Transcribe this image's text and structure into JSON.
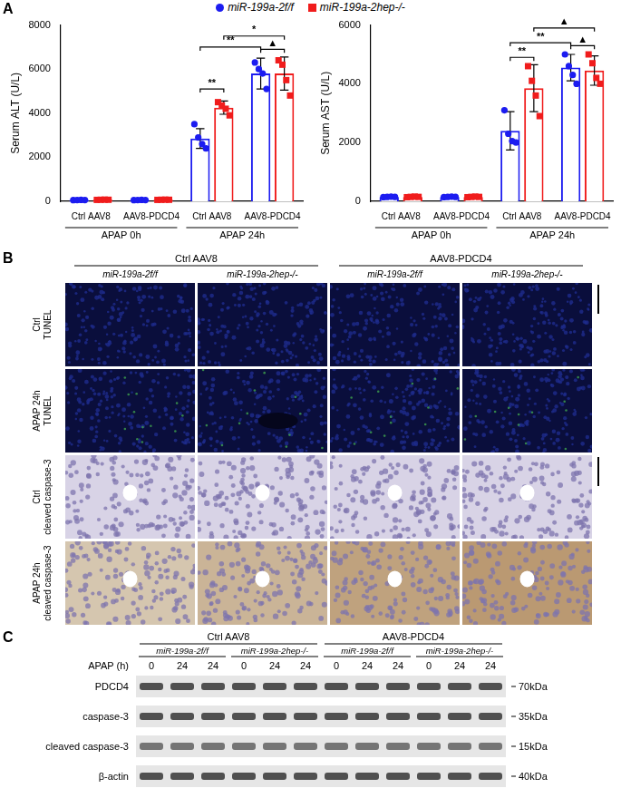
{
  "panel_labels": [
    "A",
    "B",
    "C"
  ],
  "chart_data": [
    {
      "type": "bar",
      "y_label": "Serum ALT (U/L)",
      "categories": [
        "Ctrl AAV8",
        "AAV8-PDCD4",
        "Ctrl AAV8",
        "AAV8-PDCD4"
      ],
      "groups": [
        "APAP 0h",
        "APAP 0h",
        "APAP 24h",
        "APAP 24h"
      ],
      "ylim": [
        0,
        8000
      ],
      "yticks": [
        0,
        2000,
        4000,
        6000,
        8000
      ],
      "grid": false,
      "legend": "top",
      "series": [
        {
          "name": "miR-199a-2f/f",
          "color": "#1c1cf0",
          "marker": "circle",
          "values": [
            60,
            60,
            2850,
            5800
          ],
          "errors": [
            10,
            10,
            450,
            700
          ],
          "points": [
            [
              55,
              60,
              65,
              60
            ],
            [
              55,
              60,
              65,
              60
            ],
            [
              3500,
              2900,
              2600,
              2400
            ],
            [
              6300,
              6000,
              5800,
              5100
            ]
          ]
        },
        {
          "name": "miR-199a-2hep-/-",
          "color": "#f01c1c",
          "marker": "square",
          "values": [
            70,
            70,
            4250,
            5800
          ],
          "errors": [
            10,
            10,
            300,
            750
          ],
          "points": [
            [
              65,
              70,
              75,
              70
            ],
            [
              65,
              70,
              75,
              70
            ],
            [
              4500,
              4350,
              4200,
              3900
            ],
            [
              6400,
              6200,
              5500,
              4800
            ]
          ]
        }
      ],
      "annotations": [
        {
          "text": "**",
          "y": 5100,
          "from": {
            "category": 2,
            "series": 0
          },
          "to": {
            "category": 2,
            "series": 1
          }
        },
        {
          "text": "**",
          "y": 7000,
          "from": {
            "category": 2,
            "series": 0
          },
          "to": {
            "category": 3,
            "series": 0
          }
        },
        {
          "text": "*",
          "y": 7500,
          "from": {
            "category": 2,
            "series": 1
          },
          "to": {
            "category": 3,
            "series": 1
          }
        },
        {
          "text": "▲",
          "y": 6900,
          "from": {
            "category": 3,
            "series": 0
          },
          "to": {
            "category": 3,
            "series": 1
          }
        }
      ]
    },
    {
      "type": "bar",
      "y_label": "Serum AST (U/L)",
      "categories": [
        "Ctrl AAV8",
        "AAV8-PDCD4",
        "Ctrl AAV8",
        "AAV8-PDCD4"
      ],
      "groups": [
        "APAP 0h",
        "APAP 0h",
        "APAP 24h",
        "APAP 24h"
      ],
      "ylim": [
        0,
        6000
      ],
      "yticks": [
        0,
        2000,
        4000,
        6000
      ],
      "grid": false,
      "series": [
        {
          "name": "miR-199a-2f/f",
          "color": "#1c1cf0",
          "marker": "circle",
          "values": [
            150,
            150,
            2400,
            4550
          ],
          "errors": [
            20,
            20,
            650,
            450
          ],
          "points": [
            [
              140,
              150,
              160,
              150
            ],
            [
              140,
              150,
              160,
              150
            ],
            [
              3100,
              2300,
              2050,
              2000
            ],
            [
              5000,
              4600,
              4300,
              4000
            ]
          ]
        },
        {
          "name": "miR-199a-2hep-/-",
          "color": "#f01c1c",
          "marker": "square",
          "values": [
            150,
            150,
            3850,
            4450
          ],
          "errors": [
            20,
            20,
            800,
            500
          ],
          "points": [
            [
              140,
              150,
              160,
              150
            ],
            [
              140,
              150,
              160,
              150
            ],
            [
              4600,
              4100,
              3600,
              2900
            ],
            [
              5000,
              4700,
              4200,
              4000
            ]
          ]
        }
      ],
      "annotations": [
        {
          "text": "**",
          "y": 4900,
          "from": {
            "category": 2,
            "series": 0
          },
          "to": {
            "category": 2,
            "series": 1
          }
        },
        {
          "text": "**",
          "y": 5400,
          "from": {
            "category": 2,
            "series": 0
          },
          "to": {
            "category": 3,
            "series": 0
          }
        },
        {
          "text": "▲",
          "y": 5900,
          "from": {
            "category": 2,
            "series": 1
          },
          "to": {
            "category": 3,
            "series": 1
          }
        },
        {
          "text": "▲",
          "y": 5300,
          "from": {
            "category": 3,
            "series": 0
          },
          "to": {
            "category": 3,
            "series": 1
          }
        }
      ]
    }
  ],
  "panel_b": {
    "column_groups": [
      "Ctrl AAV8",
      "AAV8-PDCD4"
    ],
    "columns": [
      "miR-199a-2f/f",
      "miR-199a-2hep-/-",
      "miR-199a-2f/f",
      "miR-199a-2hep-/-"
    ],
    "rows": [
      [
        "Ctrl",
        "TUNEL"
      ],
      [
        "APAP 24h",
        "TUNEL"
      ],
      [
        "Ctrl",
        "cleaved caspase-3"
      ],
      [
        "APAP 24h",
        "cleaved caspase-3"
      ]
    ]
  },
  "panel_c": {
    "column_groups": [
      "Ctrl AAV8",
      "AAV8-PDCD4"
    ],
    "genotypes": [
      "miR-199a-2f/f",
      "miR-199a-2hep-/-",
      "miR-199a-2f/f",
      "miR-199a-2hep-/-"
    ],
    "lane_title": "APAP (h)",
    "lanes": [
      0,
      24,
      24,
      0,
      24,
      24,
      0,
      24,
      24,
      0,
      24,
      24
    ],
    "rows": [
      {
        "name": "PDCD4",
        "size_label": "70kDa"
      },
      {
        "name": "caspase-3",
        "size_label": "35kDa"
      },
      {
        "name": "cleaved caspase-3",
        "size_label": "15kDa"
      },
      {
        "name": "β-actin",
        "size_label": "40kDa"
      }
    ]
  }
}
